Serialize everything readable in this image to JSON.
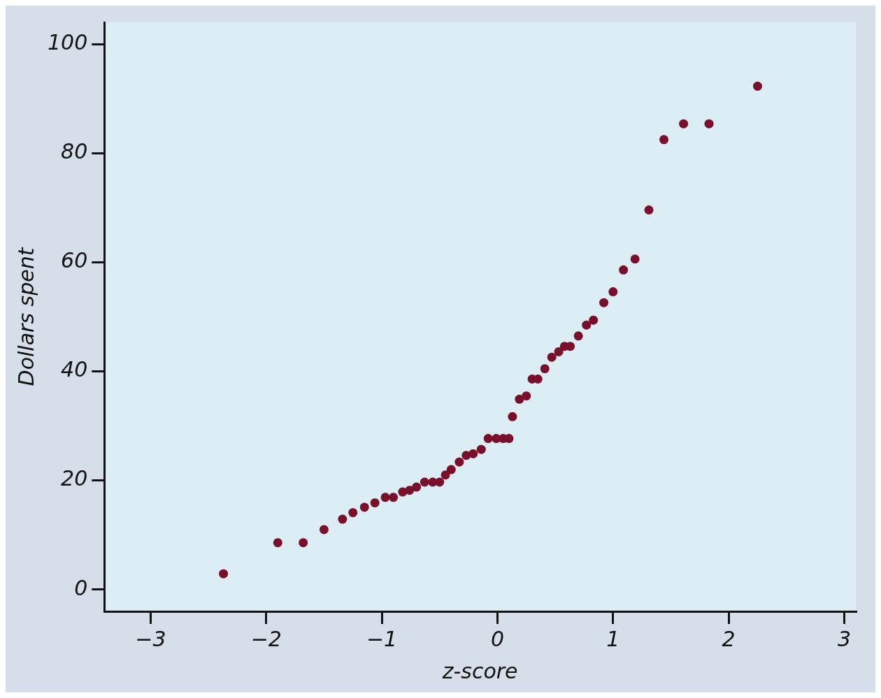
{
  "chart_data": {
    "type": "scatter",
    "xlabel": "z-score",
    "ylabel": "Dollars spent",
    "x": [
      -2.37,
      -1.9,
      -1.68,
      -1.5,
      -1.34,
      -1.25,
      -1.15,
      -1.06,
      -0.97,
      -0.9,
      -0.82,
      -0.76,
      -0.7,
      -0.63,
      -0.56,
      -0.5,
      -0.45,
      -0.4,
      -0.33,
      -0.27,
      -0.21,
      -0.14,
      -0.08,
      -0.01,
      0.05,
      0.1,
      0.13,
      0.19,
      0.25,
      0.3,
      0.35,
      0.41,
      0.47,
      0.53,
      0.58,
      0.63,
      0.7,
      0.77,
      0.83,
      0.92,
      1.0,
      1.09,
      1.19,
      1.31,
      1.44,
      1.61,
      1.83,
      2.25
    ],
    "series": [
      {
        "color": "#7a0f2c",
        "values": [
          2.9,
          8.6,
          8.6,
          11.0,
          12.9,
          14.1,
          15.1,
          15.9,
          16.9,
          16.9,
          17.9,
          18.2,
          18.8,
          19.7,
          19.7,
          19.7,
          21.0,
          22.0,
          23.4,
          24.6,
          24.9,
          25.7,
          27.7,
          27.7,
          27.7,
          27.7,
          31.7,
          34.9,
          35.5,
          38.6,
          38.6,
          40.5,
          42.6,
          43.6,
          44.6,
          44.6,
          46.5,
          48.5,
          49.4,
          52.6,
          54.6,
          58.6,
          60.6,
          69.6,
          82.5,
          85.4,
          85.4,
          92.3
        ]
      }
    ],
    "xlim": [
      -3.4,
      3.1
    ],
    "ylim": [
      -4,
      104
    ],
    "xticks": [
      {
        "value": -3,
        "label": "−3"
      },
      {
        "value": -2,
        "label": "−2"
      },
      {
        "value": -1,
        "label": "−1"
      },
      0,
      1,
      2,
      3
    ],
    "yticks": [
      0,
      20,
      40,
      60,
      80,
      100
    ],
    "grid": false,
    "legend": false,
    "marker": "circle"
  }
}
